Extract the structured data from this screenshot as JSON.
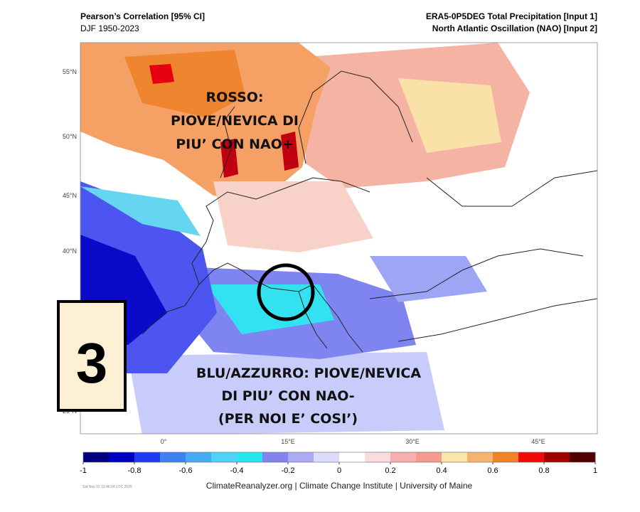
{
  "header": {
    "left_title": "Pearson’s Correlation [95% CI]",
    "left_subtitle": "DJF 1950-2023",
    "right_title": "ERA5-0P5DEG Total Precipitation [Input 1]",
    "right_subtitle": "North Atlantic Oscillation (NAO) [Input 2]"
  },
  "map": {
    "lat_labels": [
      "55°N",
      "50°N",
      "45°N",
      "40°N",
      "25°N"
    ],
    "lon_labels": [
      "0°",
      "15°E",
      "30°E",
      "45°E"
    ],
    "annotation_red": [
      "ROSSO:",
      "PIOVE/NEVICA DI",
      "PIU’ CON NAO+"
    ],
    "annotation_blue": [
      "BLU/AZZURRO: PIOVE/NEVICA",
      "DI PIU’ CON NAO-",
      "(PER NOI E’ COSI’)"
    ],
    "badge": "3"
  },
  "colorbar": {
    "lim": [
      -1,
      1
    ],
    "colors": [
      "#00007f",
      "#0000c0",
      "#1e3cf0",
      "#3c82f0",
      "#46aaf5",
      "#50d2f5",
      "#28e6f0",
      "#8282f0",
      "#aaaaf5",
      "#dcdcfa",
      "#ffffff",
      "#fadcdc",
      "#f5afaf",
      "#f59a8c",
      "#fae6aa",
      "#f5b46e",
      "#f08228",
      "#f00a0a",
      "#a00000",
      "#500000"
    ],
    "ticks": [
      -1,
      -0.8,
      -0.6,
      -0.4,
      -0.2,
      0,
      0.2,
      0.4,
      0.6,
      0.8,
      1
    ]
  },
  "footer": {
    "timestamp": "Sat Nov 15 12:46:14 UTC 2025",
    "credit": "ClimateReanalyzer.org | Climate Change Institute | University of Maine"
  }
}
